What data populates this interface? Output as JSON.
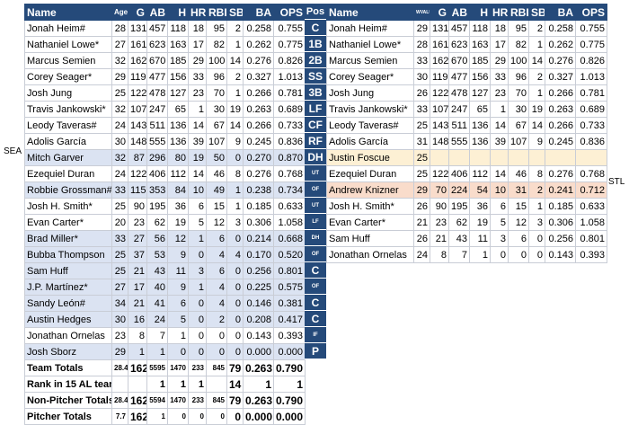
{
  "left": {
    "headers": [
      "Name",
      "Age",
      "G",
      "AB",
      "H",
      "HR",
      "RBI",
      "SB",
      "BA",
      "OPS"
    ],
    "rows": [
      {
        "name": "Jonah Heim#",
        "age": "28",
        "g": "131",
        "ab": "457",
        "h": "118",
        "hr": "18",
        "rbi": "95",
        "sb": "2",
        "ba": "0.258",
        "ops": "0.755",
        "hl": ""
      },
      {
        "name": "Nathaniel Lowe*",
        "age": "27",
        "g": "161",
        "ab": "623",
        "h": "163",
        "hr": "17",
        "rbi": "82",
        "sb": "1",
        "ba": "0.262",
        "ops": "0.775",
        "hl": ""
      },
      {
        "name": "Marcus Semien",
        "age": "32",
        "g": "162",
        "ab": "670",
        "h": "185",
        "hr": "29",
        "rbi": "100",
        "sb": "14",
        "ba": "0.276",
        "ops": "0.826",
        "hl": ""
      },
      {
        "name": "Corey Seager*",
        "age": "29",
        "g": "119",
        "ab": "477",
        "h": "156",
        "hr": "33",
        "rbi": "96",
        "sb": "2",
        "ba": "0.327",
        "ops": "1.013",
        "hl": ""
      },
      {
        "name": "Josh Jung",
        "age": "25",
        "g": "122",
        "ab": "478",
        "h": "127",
        "hr": "23",
        "rbi": "70",
        "sb": "1",
        "ba": "0.266",
        "ops": "0.781",
        "hl": ""
      },
      {
        "name": "Travis Jankowski*",
        "age": "32",
        "g": "107",
        "ab": "247",
        "h": "65",
        "hr": "1",
        "rbi": "30",
        "sb": "19",
        "ba": "0.263",
        "ops": "0.689",
        "hl": ""
      },
      {
        "name": "Leody Taveras#",
        "age": "24",
        "g": "143",
        "ab": "511",
        "h": "136",
        "hr": "14",
        "rbi": "67",
        "sb": "14",
        "ba": "0.266",
        "ops": "0.733",
        "hl": ""
      },
      {
        "name": "Adolis García",
        "age": "30",
        "g": "148",
        "ab": "555",
        "h": "136",
        "hr": "39",
        "rbi": "107",
        "sb": "9",
        "ba": "0.245",
        "ops": "0.836",
        "hl": ""
      },
      {
        "name": "Mitch Garver",
        "age": "32",
        "g": "87",
        "ab": "296",
        "h": "80",
        "hr": "19",
        "rbi": "50",
        "sb": "0",
        "ba": "0.270",
        "ops": "0.870",
        "hl": "blue"
      },
      {
        "name": "Ezequiel Duran",
        "age": "24",
        "g": "122",
        "ab": "406",
        "h": "112",
        "hr": "14",
        "rbi": "46",
        "sb": "8",
        "ba": "0.276",
        "ops": "0.768",
        "hl": ""
      },
      {
        "name": "Robbie Grossman#",
        "age": "33",
        "g": "115",
        "ab": "353",
        "h": "84",
        "hr": "10",
        "rbi": "49",
        "sb": "1",
        "ba": "0.238",
        "ops": "0.734",
        "hl": "blue"
      },
      {
        "name": "Josh H. Smith*",
        "age": "25",
        "g": "90",
        "ab": "195",
        "h": "36",
        "hr": "6",
        "rbi": "15",
        "sb": "1",
        "ba": "0.185",
        "ops": "0.633",
        "hl": ""
      },
      {
        "name": "Evan Carter*",
        "age": "20",
        "g": "23",
        "ab": "62",
        "h": "19",
        "hr": "5",
        "rbi": "12",
        "sb": "3",
        "ba": "0.306",
        "ops": "1.058",
        "hl": ""
      },
      {
        "name": "Brad Miller*",
        "age": "33",
        "g": "27",
        "ab": "56",
        "h": "12",
        "hr": "1",
        "rbi": "6",
        "sb": "0",
        "ba": "0.214",
        "ops": "0.668",
        "hl": "blue"
      },
      {
        "name": "Bubba Thompson",
        "age": "25",
        "g": "37",
        "ab": "53",
        "h": "9",
        "hr": "0",
        "rbi": "4",
        "sb": "4",
        "ba": "0.170",
        "ops": "0.520",
        "hl": "blue"
      },
      {
        "name": "Sam Huff",
        "age": "25",
        "g": "21",
        "ab": "43",
        "h": "11",
        "hr": "3",
        "rbi": "6",
        "sb": "0",
        "ba": "0.256",
        "ops": "0.801",
        "hl": "blue"
      },
      {
        "name": "J.P. Martínez*",
        "age": "27",
        "g": "17",
        "ab": "40",
        "h": "9",
        "hr": "1",
        "rbi": "4",
        "sb": "0",
        "ba": "0.225",
        "ops": "0.575",
        "hl": "blue"
      },
      {
        "name": "Sandy León#",
        "age": "34",
        "g": "21",
        "ab": "41",
        "h": "6",
        "hr": "0",
        "rbi": "4",
        "sb": "0",
        "ba": "0.146",
        "ops": "0.381",
        "hl": "blue"
      },
      {
        "name": "Austin Hedges",
        "age": "30",
        "g": "16",
        "ab": "24",
        "h": "5",
        "hr": "0",
        "rbi": "2",
        "sb": "0",
        "ba": "0.208",
        "ops": "0.417",
        "hl": "blue"
      },
      {
        "name": "Jonathan Ornelas",
        "age": "23",
        "g": "8",
        "ab": "7",
        "h": "1",
        "hr": "0",
        "rbi": "0",
        "sb": "0",
        "ba": "0.143",
        "ops": "0.393",
        "hl": ""
      },
      {
        "name": "Josh Sborz",
        "age": "29",
        "g": "1",
        "ab": "1",
        "h": "0",
        "hr": "0",
        "rbi": "0",
        "sb": "0",
        "ba": "0.000",
        "ops": "0.000",
        "hl": "blue"
      }
    ],
    "totals": [
      {
        "name": "Team Totals",
        "age": "28.4",
        "g": "162",
        "ab": "5595",
        "h": "1470",
        "hr": "233",
        "rbi": "845",
        "sb": "79",
        "ba": "0.263",
        "ops": "0.790"
      },
      {
        "name": "Rank in 15 AL teams",
        "age": "",
        "g": "",
        "ab": "1",
        "h": "1",
        "hr": "1",
        "rbi": "",
        "sb": "14",
        "ba": "1",
        "ops": "1"
      },
      {
        "name": "Non-Pitcher Totals",
        "age": "28.4",
        "g": "162",
        "ab": "5594",
        "h": "1470",
        "hr": "233",
        "rbi": "845",
        "sb": "79",
        "ba": "0.263",
        "ops": "0.790"
      },
      {
        "name": "Pitcher Totals",
        "age": "7.7",
        "g": "162",
        "ab": "1",
        "h": "0",
        "hr": "0",
        "rbi": "0",
        "sb": "0",
        "ba": "0.000",
        "ops": "0.000"
      }
    ]
  },
  "pos": {
    "header": "Pos",
    "items": [
      {
        "t": "C",
        "s": false
      },
      {
        "t": "1B",
        "s": false
      },
      {
        "t": "2B",
        "s": false
      },
      {
        "t": "SS",
        "s": false
      },
      {
        "t": "3B",
        "s": false
      },
      {
        "t": "LF",
        "s": false
      },
      {
        "t": "CF",
        "s": false
      },
      {
        "t": "RF",
        "s": false
      },
      {
        "t": "DH",
        "s": false
      },
      {
        "t": "UT",
        "s": true
      },
      {
        "t": "OF",
        "s": true
      },
      {
        "t": "UT",
        "s": true
      },
      {
        "t": "LF",
        "s": true
      },
      {
        "t": "DH",
        "s": true
      },
      {
        "t": "OF",
        "s": true
      },
      {
        "t": "C",
        "s": false
      },
      {
        "t": "OF",
        "s": true
      },
      {
        "t": "C",
        "s": false
      },
      {
        "t": "C",
        "s": false
      },
      {
        "t": "IF",
        "s": true
      },
      {
        "t": "P",
        "s": false
      }
    ]
  },
  "right": {
    "headers": [
      "Name",
      "WVALUE",
      "G",
      "AB",
      "H",
      "HR",
      "RBI",
      "SB",
      "BA",
      "OPS"
    ],
    "rows": [
      {
        "name": "Jonah Heim#",
        "age": "29",
        "g": "131",
        "ab": "457",
        "h": "118",
        "hr": "18",
        "rbi": "95",
        "sb": "2",
        "ba": "0.258",
        "ops": "0.755",
        "hl": "",
        "sub": ""
      },
      {
        "name": "Nathaniel Lowe*",
        "age": "28",
        "g": "161",
        "ab": "623",
        "h": "163",
        "hr": "17",
        "rbi": "82",
        "sb": "1",
        "ba": "0.262",
        "ops": "0.775",
        "hl": "",
        "sub": ""
      },
      {
        "name": "Marcus Semien",
        "age": "33",
        "g": "162",
        "ab": "670",
        "h": "185",
        "hr": "29",
        "rbi": "100",
        "sb": "14",
        "ba": "0.276",
        "ops": "0.826",
        "hl": "",
        "sub": ""
      },
      {
        "name": "Corey Seager*",
        "age": "30",
        "g": "119",
        "ab": "477",
        "h": "156",
        "hr": "33",
        "rbi": "96",
        "sb": "2",
        "ba": "0.327",
        "ops": "1.013",
        "hl": "",
        "sub": ""
      },
      {
        "name": "Josh Jung",
        "age": "26",
        "g": "122",
        "ab": "478",
        "h": "127",
        "hr": "23",
        "rbi": "70",
        "sb": "1",
        "ba": "0.266",
        "ops": "0.781",
        "hl": "",
        "sub": ""
      },
      {
        "name": "Travis Jankowski*",
        "age": "33",
        "g": "107",
        "ab": "247",
        "h": "65",
        "hr": "1",
        "rbi": "30",
        "sb": "19",
        "ba": "0.263",
        "ops": "0.689",
        "hl": "",
        "sub": ""
      },
      {
        "name": "Leody Taveras#",
        "age": "25",
        "g": "143",
        "ab": "511",
        "h": "136",
        "hr": "14",
        "rbi": "67",
        "sb": "14",
        "ba": "0.266",
        "ops": "0.733",
        "hl": "",
        "sub": ""
      },
      {
        "name": "Adolis García",
        "age": "31",
        "g": "148",
        "ab": "555",
        "h": "136",
        "hr": "39",
        "rbi": "107",
        "sb": "9",
        "ba": "0.245",
        "ops": "0.836",
        "hl": "",
        "sub": ""
      },
      {
        "name": "Justin Foscue",
        "age": "25",
        "g": "",
        "ab": "",
        "h": "",
        "hr": "",
        "rbi": "",
        "sb": "",
        "ba": "",
        "ops": "",
        "hl": "yellow",
        "sub": ""
      },
      {
        "name": "Ezequiel Duran",
        "age": "25",
        "g": "122",
        "ab": "406",
        "h": "112",
        "hr": "14",
        "rbi": "46",
        "sb": "8",
        "ba": "0.276",
        "ops": "0.768",
        "hl": "",
        "sub": "UT"
      },
      {
        "name": "Andrew Knizner",
        "age": "29",
        "g": "70",
        "ab": "224",
        "h": "54",
        "hr": "10",
        "rbi": "31",
        "sb": "2",
        "ba": "0.241",
        "ops": "0.712",
        "hl": "peach",
        "sub": "C"
      },
      {
        "name": "Josh H. Smith*",
        "age": "26",
        "g": "90",
        "ab": "195",
        "h": "36",
        "hr": "6",
        "rbi": "15",
        "sb": "1",
        "ba": "0.185",
        "ops": "0.633",
        "hl": "",
        "sub": "UT"
      },
      {
        "name": "Evan Carter*",
        "age": "21",
        "g": "23",
        "ab": "62",
        "h": "19",
        "hr": "5",
        "rbi": "12",
        "sb": "3",
        "ba": "0.306",
        "ops": "1.058",
        "hl": "",
        "sub": "LF"
      },
      {
        "name": "Sam Huff",
        "age": "26",
        "g": "21",
        "ab": "43",
        "h": "11",
        "hr": "3",
        "rbi": "6",
        "sb": "0",
        "ba": "0.256",
        "ops": "0.801",
        "hl": "",
        "sub": "C"
      },
      {
        "name": "Jonathan Ornelas",
        "age": "24",
        "g": "8",
        "ab": "7",
        "h": "1",
        "hr": "0",
        "rbi": "0",
        "sb": "0",
        "ba": "0.143",
        "ops": "0.393",
        "hl": "",
        "sub": "IF"
      }
    ]
  },
  "side_labels": {
    "sea": "SEA",
    "stl": "STL"
  }
}
